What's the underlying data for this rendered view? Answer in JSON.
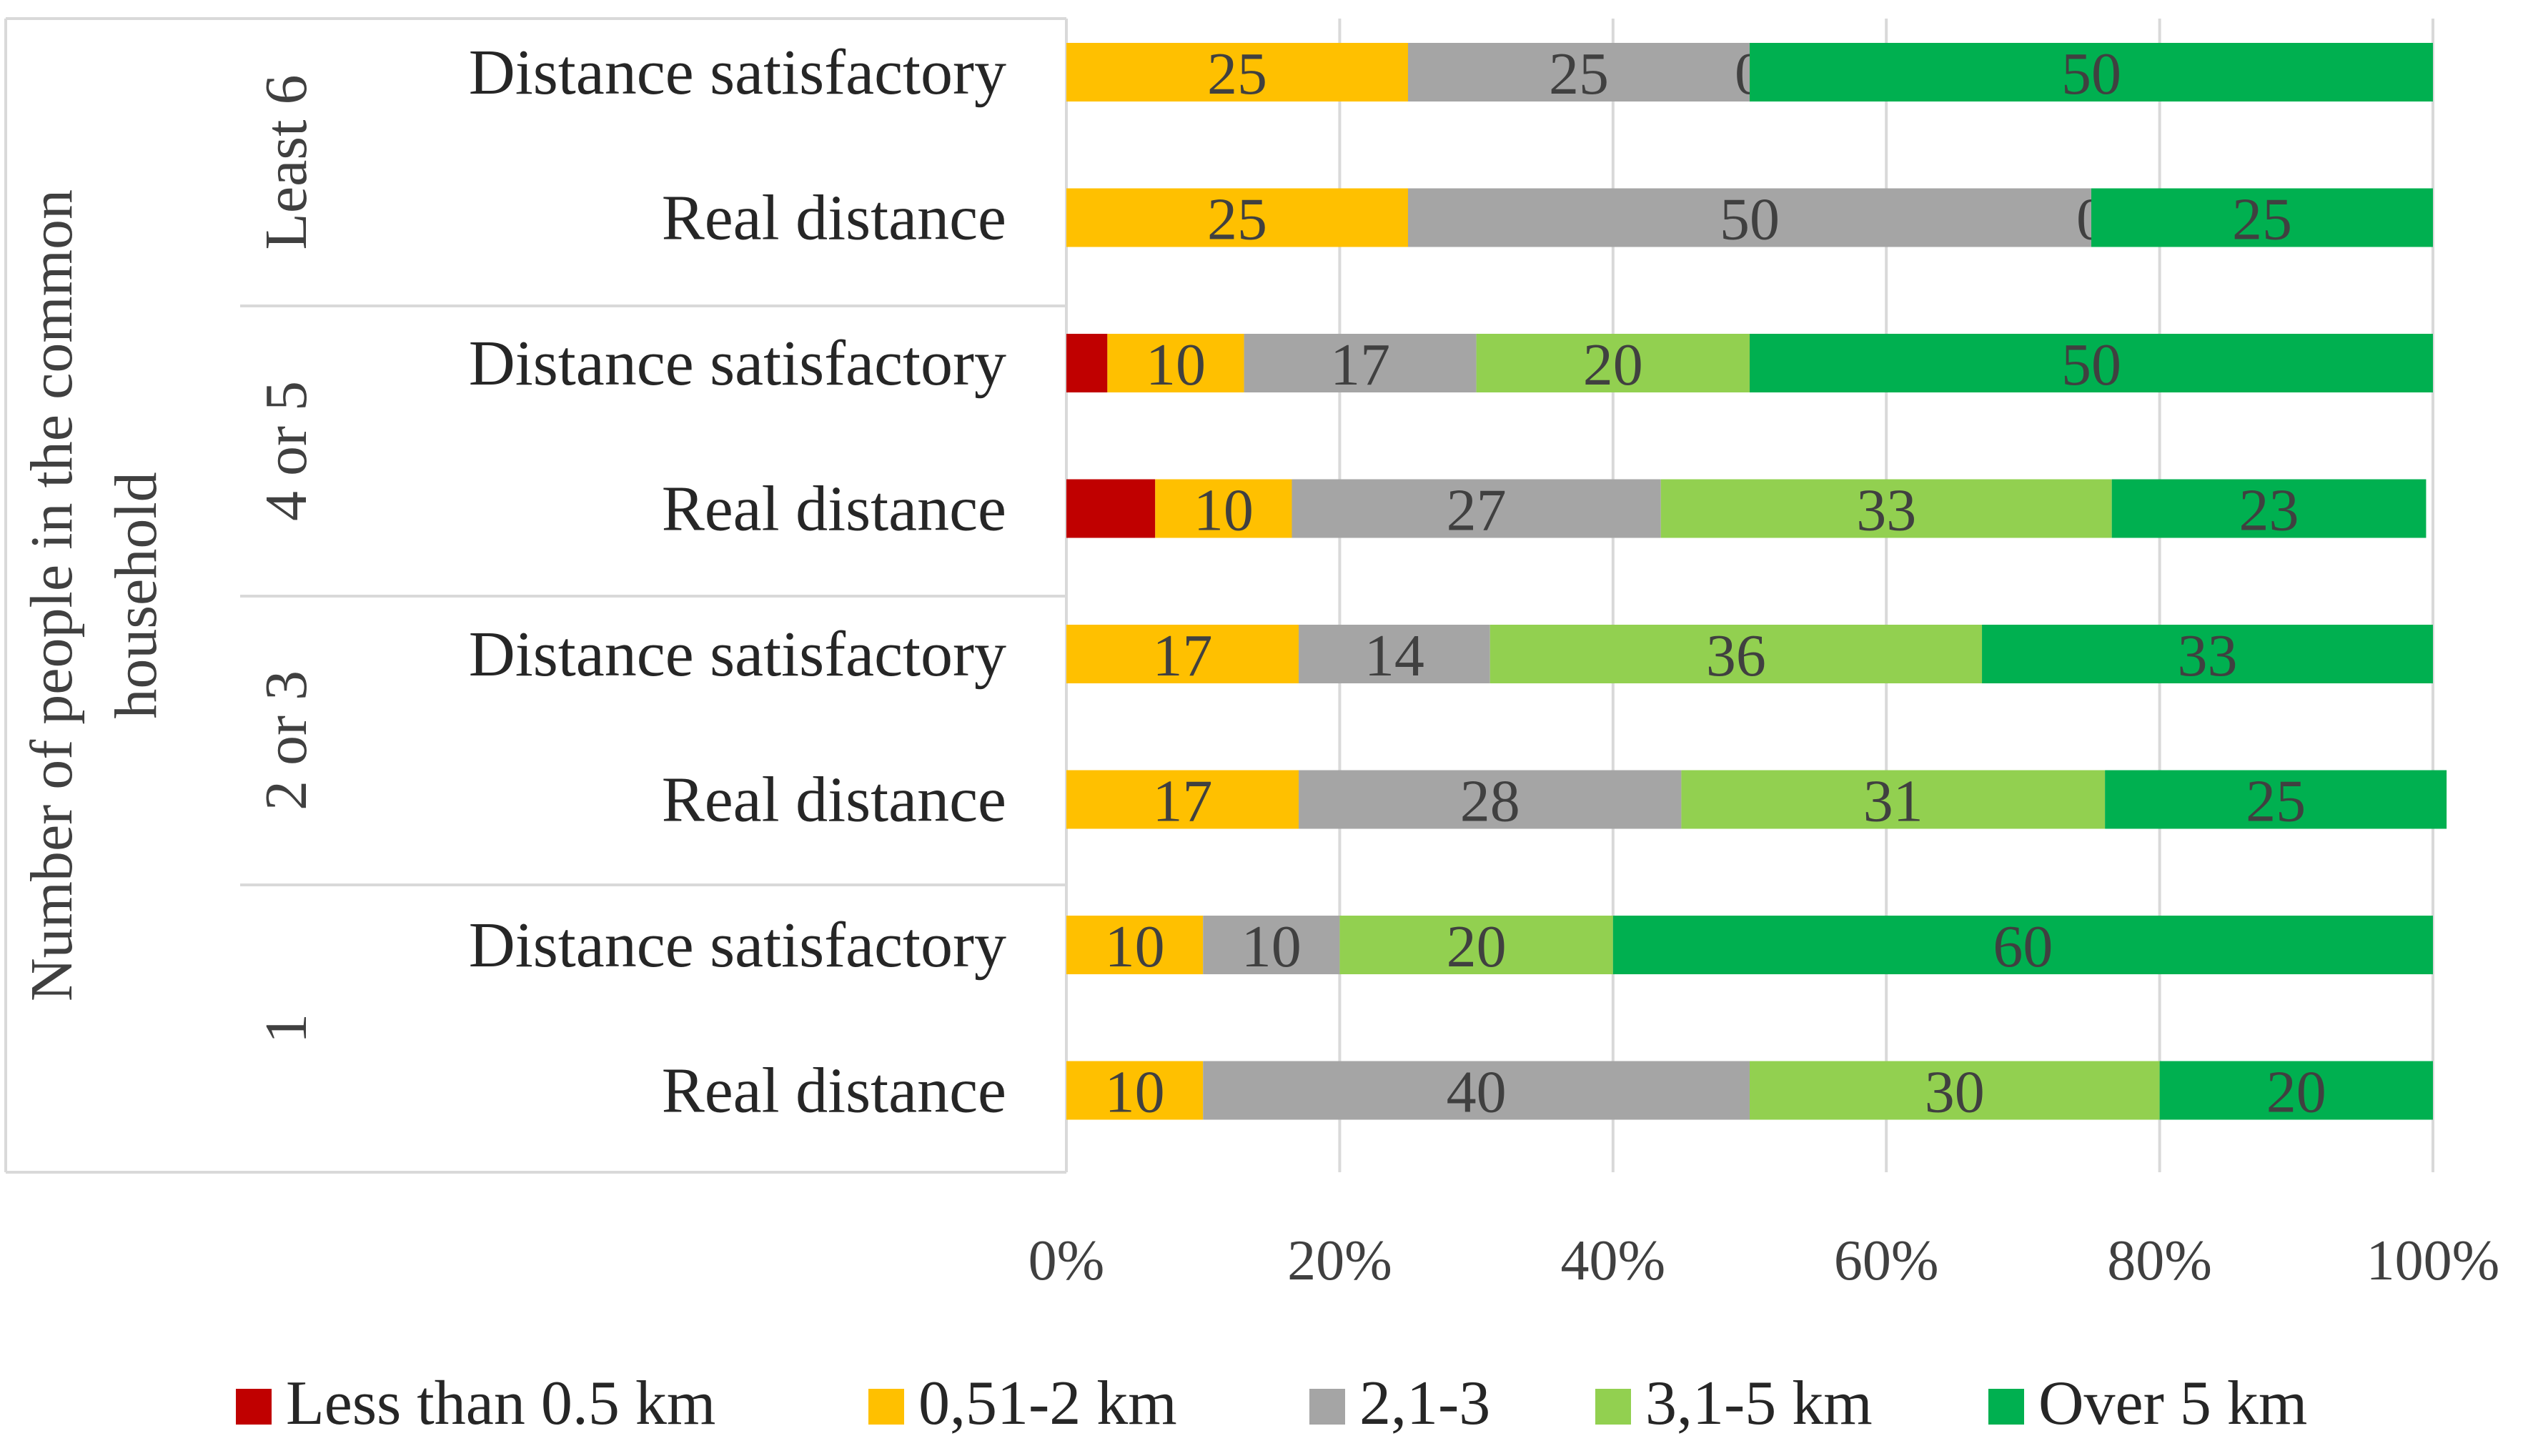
{
  "chart_data": {
    "type": "bar",
    "orientation": "horizontal",
    "stacked": "percent",
    "title": "",
    "ylabel": "Number of people in the common household",
    "xlabel": "",
    "xlim": [
      0,
      100
    ],
    "x_ticks": [
      "0%",
      "20%",
      "40%",
      "60%",
      "80%",
      "100%"
    ],
    "grid": true,
    "legend_position": "bottom",
    "series": [
      {
        "name": "Less than 0.5 km",
        "color": "#C00000"
      },
      {
        "name": "0,51-2 km",
        "color": "#FFC000"
      },
      {
        "name": "2,1-3",
        "color": "#A5A5A5"
      },
      {
        "name": "3,1-5 km",
        "color": "#92D050"
      },
      {
        "name": "Over 5 km",
        "color": "#00B050"
      }
    ],
    "groups": [
      {
        "label": "Least 6",
        "rows": [
          {
            "category": "Distance satisfactory",
            "values": [
              0,
              25,
              25,
              0,
              50
            ],
            "labels": [
              "",
              "25",
              "25",
              "0",
              "50"
            ]
          },
          {
            "category": "Real distance",
            "values": [
              0,
              25,
              50,
              0,
              25
            ],
            "labels": [
              "",
              "25",
              "50",
              "0",
              "25"
            ]
          }
        ]
      },
      {
        "label": "4 or 5",
        "rows": [
          {
            "category": "Distance satisfactory",
            "values": [
              3,
              10,
              17,
              20,
              50
            ],
            "labels": [
              "",
              "10",
              "17",
              "20",
              "50"
            ]
          },
          {
            "category": "Real distance",
            "values": [
              6.5,
              10,
              27,
              33,
              23
            ],
            "labels": [
              "",
              "10",
              "27",
              "33",
              "23"
            ]
          }
        ]
      },
      {
        "label": "2 or 3",
        "rows": [
          {
            "category": "Distance satisfactory",
            "values": [
              0,
              17,
              14,
              36,
              33
            ],
            "labels": [
              "",
              "17",
              "14",
              "36",
              "33"
            ]
          },
          {
            "category": "Real distance",
            "values": [
              0,
              17,
              28,
              31,
              25
            ],
            "labels": [
              "",
              "17",
              "28",
              "31",
              "25"
            ]
          }
        ]
      },
      {
        "label": "1",
        "rows": [
          {
            "category": "Distance satisfactory",
            "values": [
              0,
              10,
              10,
              20,
              60
            ],
            "labels": [
              "",
              "10",
              "10",
              "20",
              "60"
            ]
          },
          {
            "category": "Real distance",
            "values": [
              0,
              10,
              40,
              30,
              20
            ],
            "labels": [
              "",
              "10",
              "40",
              "30",
              "20"
            ]
          }
        ]
      }
    ]
  }
}
